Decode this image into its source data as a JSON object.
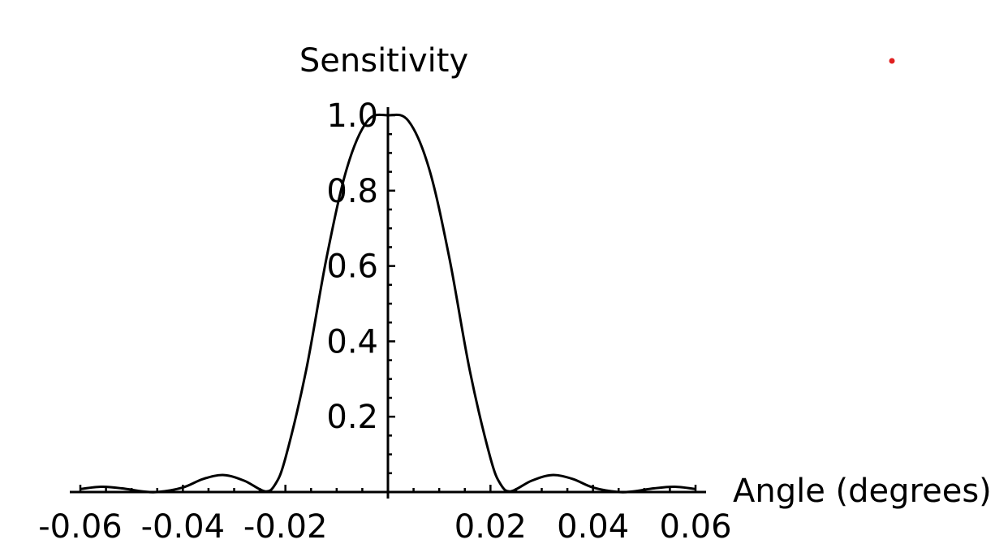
{
  "chart_data": {
    "type": "line",
    "title": "",
    "xlabel": "Angle (degrees)",
    "ylabel": "Sensitivity",
    "xlim": [
      -0.06,
      0.06
    ],
    "ylim": [
      0,
      1.0
    ],
    "x_ticks": [
      -0.06,
      -0.04,
      -0.02,
      0.02,
      0.04,
      0.06
    ],
    "x_tick_labels": [
      "-0.06",
      "-0.04",
      "-0.02",
      "0.02",
      "0.04",
      "0.06"
    ],
    "y_ticks": [
      0.2,
      0.4,
      0.6,
      0.8,
      1.0
    ],
    "y_tick_labels": [
      "0.2",
      "0.4",
      "0.6",
      "0.8",
      "1.0"
    ],
    "grid": false,
    "series": [
      {
        "x": [
          -0.06,
          -0.056,
          -0.052,
          -0.048,
          -0.045,
          -0.04,
          -0.036,
          -0.032,
          -0.028,
          -0.024,
          -0.022,
          -0.02,
          -0.016,
          -0.012,
          -0.008,
          -0.004,
          0,
          0.004,
          0.008,
          0.012,
          0.016,
          0.02,
          0.022,
          0.024,
          0.028,
          0.032,
          0.036,
          0.04,
          0.045,
          0.048,
          0.052,
          0.056,
          0.06
        ],
        "values": [
          0.008,
          0.014,
          0.01,
          0.002,
          0.0,
          0.012,
          0.035,
          0.045,
          0.03,
          0.002,
          0.02,
          0.09,
          0.32,
          0.62,
          0.86,
          0.985,
          1.0,
          0.985,
          0.86,
          0.62,
          0.32,
          0.09,
          0.02,
          0.002,
          0.03,
          0.045,
          0.035,
          0.012,
          0.0,
          0.002,
          0.01,
          0.014,
          0.008
        ]
      }
    ]
  },
  "annotations": {
    "marker_color": "#e02020"
  }
}
